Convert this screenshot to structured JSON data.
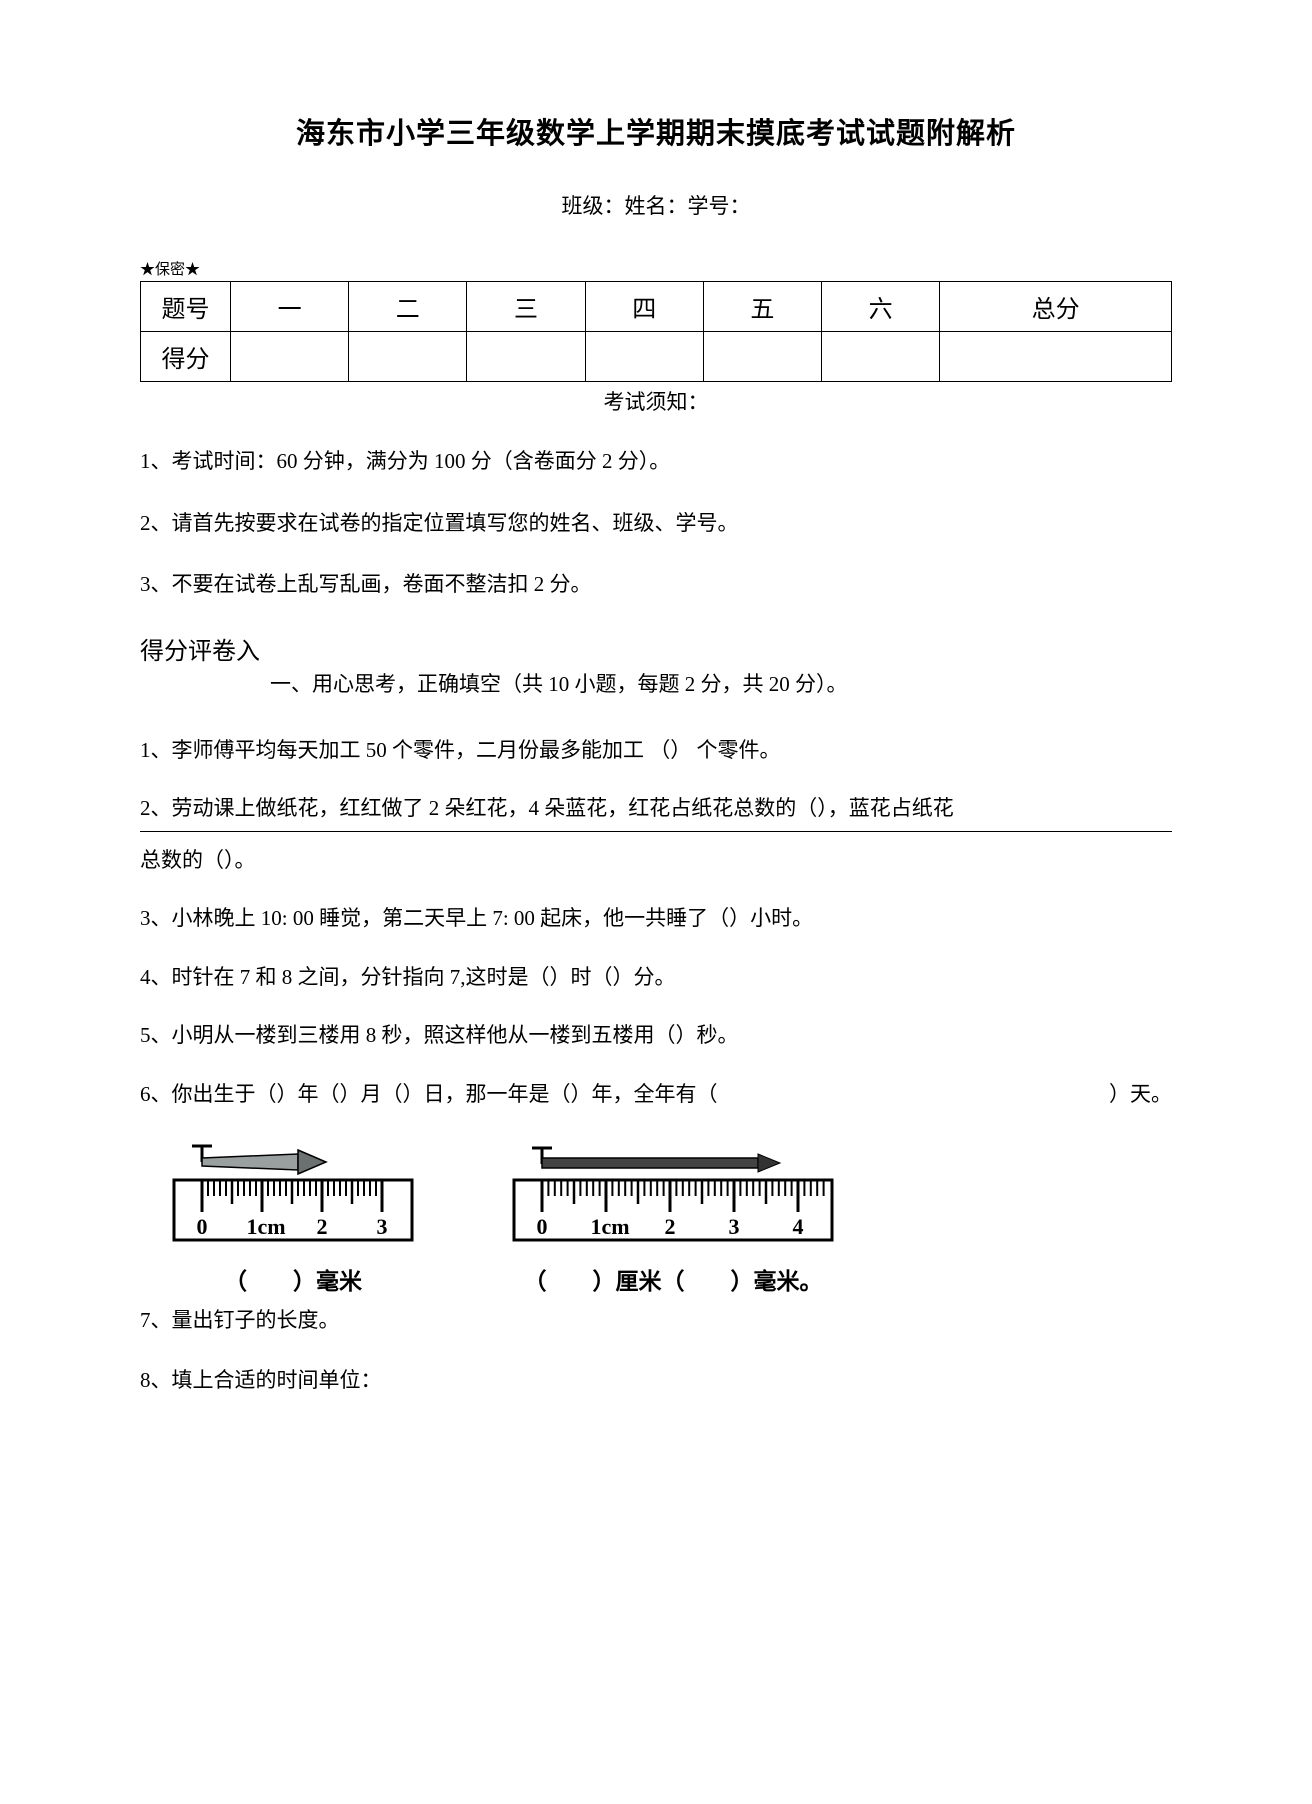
{
  "title": "海东市小学三年级数学上学期期末摸底考试试题附解析",
  "classline": "班级：姓名：学号：",
  "secrecy_tag": "★保密★",
  "score_table": {
    "row_label_1": "题号",
    "row_label_2": "得分",
    "cols": [
      "一",
      "二",
      "三",
      "四",
      "五",
      "六",
      "总分"
    ]
  },
  "instr_head": "考试须知：",
  "instructions": [
    "1、考试时间：60 分钟，满分为 100 分（含卷面分 2 分）。",
    "2、请首先按要求在试卷的指定位置填写您的姓名、班级、学号。",
    "3、不要在试卷上乱写乱画，卷面不整洁扣 2 分。"
  ],
  "scorer_line": "得分评卷入",
  "section1_title": "一、用心思考，正确填空（共 10 小题，每题 2 分，共 20 分）。",
  "q1": "1、李师傅平均每天加工  50 个零件，二月份最多能加工 （）  个零件。",
  "q2a": "2、劳动课上做纸花，红红做了  2 朵红花，4 朵蓝花，红花占纸花总数的（），蓝花占纸花",
  "q2b": "总数的（）。",
  "q3": "3、小林晚上 10: 00 睡觉，第二天早上 7: 00 起床，他一共睡了（）小时。",
  "q4": "4、时针在 7 和 8 之间，分针指向 7,这时是（）时（）分。",
  "q5": "5、小明从一楼到三楼用  8 秒，照这样他从一楼到五楼用（）秒。",
  "q6_left": "6、你出生于（）年（）月（）日，那一年是（）年，全年有（",
  "q6_right": "）天。",
  "ruler1": {
    "caption": "（　　）毫米",
    "labels": [
      "0",
      "1cm",
      "2",
      "3"
    ]
  },
  "ruler2": {
    "caption": "（　　）厘米（　　）毫米。",
    "labels": [
      "0",
      "1cm",
      "2",
      "3",
      "4"
    ]
  },
  "q7": "7、量出钉子的长度。",
  "q8": "8、填上合适的时间单位："
}
